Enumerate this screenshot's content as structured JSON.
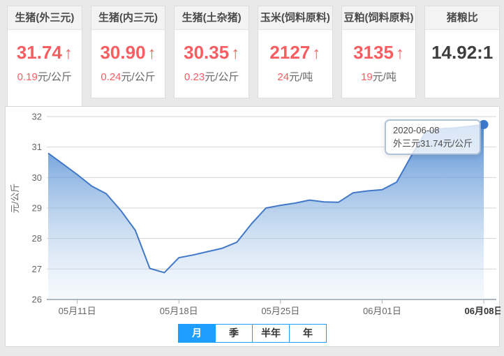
{
  "page": {
    "bg_color": "#e9e9e9",
    "accent_red": "#f85d62",
    "accent_blue": "#1E9FFF"
  },
  "cards": [
    {
      "title": "生猪(外三元)",
      "value": "31.74",
      "arrow": "↑",
      "change": "0.19",
      "unit": "元/公斤",
      "active": true
    },
    {
      "title": "生猪(内三元)",
      "value": "30.90",
      "arrow": "↑",
      "change": "0.24",
      "unit": "元/公斤"
    },
    {
      "title": "生猪(土杂猪)",
      "value": "30.35",
      "arrow": "↑",
      "change": "0.23",
      "unit": "元/公斤"
    },
    {
      "title": "玉米(饲料原料)",
      "value": "2127",
      "arrow": "↑",
      "change": "24",
      "unit": "元/吨"
    },
    {
      "title": "豆粕(饲料原料)",
      "value": "3135",
      "arrow": "↑",
      "change": "19",
      "unit": "元/吨"
    },
    {
      "title": "猪粮比",
      "value": "14.92:1",
      "arrow": "",
      "change": "",
      "unit": ""
    }
  ],
  "chart_data": {
    "type": "area",
    "series_name": "外三元",
    "x": [
      "05-09",
      "05-10",
      "05-11",
      "05-12",
      "05-13",
      "05-14",
      "05-15",
      "05-16",
      "05-17",
      "05-18",
      "05-19",
      "05-20",
      "05-21",
      "05-22",
      "05-23",
      "05-24",
      "05-25",
      "05-26",
      "05-27",
      "05-28",
      "05-29",
      "05-30",
      "05-31",
      "06-01",
      "06-02",
      "06-03",
      "06-04",
      "06-05",
      "06-06",
      "06-07",
      "06-08"
    ],
    "values": [
      30.8,
      30.45,
      30.1,
      29.72,
      29.47,
      28.92,
      28.27,
      27.02,
      26.88,
      27.37,
      27.46,
      27.57,
      27.68,
      27.88,
      28.48,
      29.0,
      29.09,
      29.16,
      29.26,
      29.2,
      29.19,
      29.5,
      29.56,
      29.6,
      29.85,
      30.7,
      31.5,
      31.6,
      31.63,
      31.68,
      31.74
    ],
    "ylabel": "元/公斤",
    "ylim": [
      26,
      32
    ],
    "yticks": [
      32,
      31,
      30,
      29,
      28,
      27,
      26
    ],
    "xtick_labels": [
      "05月11日",
      "05月18日",
      "05月25日",
      "06月01日",
      "06月08日"
    ],
    "xtick_indices": [
      2,
      9,
      16,
      23,
      30
    ],
    "grid": true,
    "line_color": "#4178c8",
    "dot_color": "#3c78cb",
    "tooltip": {
      "date": "2020-06-08",
      "text": "外三元31.74元/公斤"
    }
  },
  "range_buttons": [
    {
      "label": "月",
      "active": true
    },
    {
      "label": "季",
      "active": false
    },
    {
      "label": "半年",
      "active": false
    },
    {
      "label": "年",
      "active": false
    }
  ]
}
